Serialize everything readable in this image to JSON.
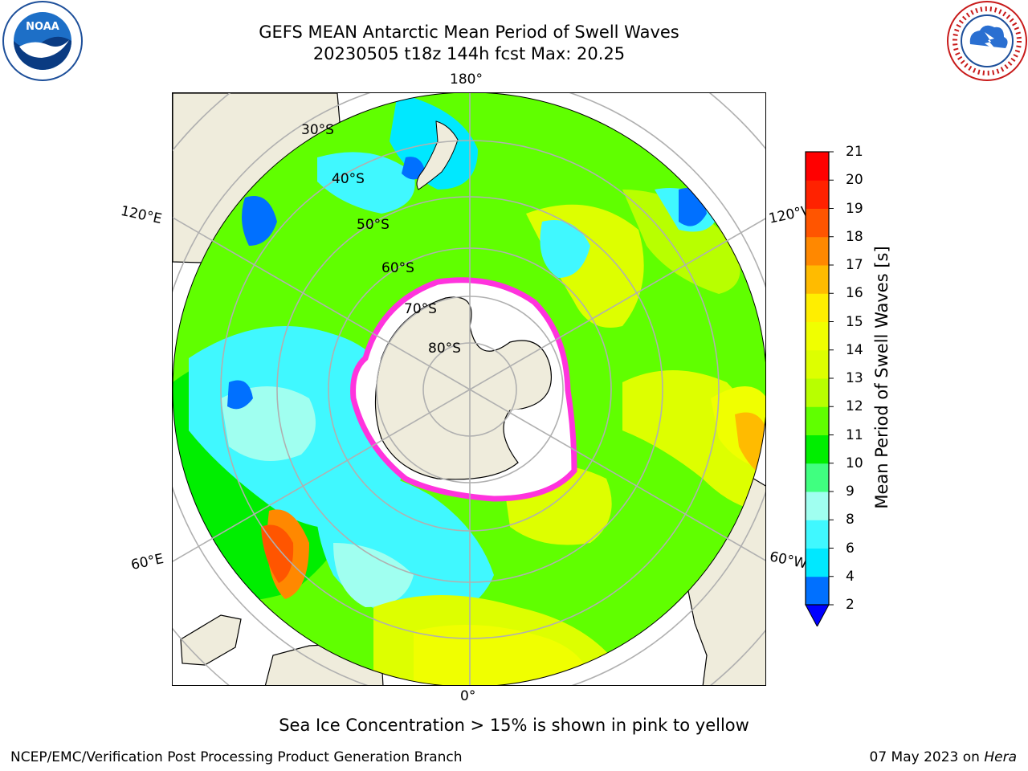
{
  "title": {
    "line1": "GEFS MEAN Antarctic Mean Period of Swell Waves",
    "line2": "20230505 t18z 144h fcst   Max: 20.25"
  },
  "logos": {
    "left": "noaa-logo",
    "right": "national-weather-service-logo"
  },
  "map": {
    "projection": "south-polar-stereographic",
    "longitude_labels": {
      "top": "180°",
      "bottom": "0°",
      "upper_left": "120°E",
      "upper_right": "120°W",
      "lower_left": "60°E",
      "lower_right": "60°W"
    },
    "latitude_labels": [
      "30°S",
      "40°S",
      "50°S",
      "60°S",
      "70°S",
      "80°S"
    ],
    "colors": {
      "land": "#efecdc",
      "grid": "#b0b0b0",
      "ice_edge": "#ff33dd",
      "ice_fill": "#ffffff"
    }
  },
  "colorbar": {
    "label": "Mean Period of Swell Waves [s]",
    "ticks": [
      "2",
      "4",
      "6",
      "8",
      "9",
      "10",
      "11",
      "12",
      "13",
      "14",
      "15",
      "16",
      "17",
      "18",
      "19",
      "20",
      "21"
    ],
    "colors": [
      "#0070ff",
      "#00e8ff",
      "#40f8ff",
      "#a0fff0",
      "#40ff80",
      "#00ee00",
      "#60ff00",
      "#b8ff00",
      "#ddff00",
      "#f0ff00",
      "#ffee00",
      "#ffbb00",
      "#ff8800",
      "#ff5500",
      "#ff2200",
      "#ff0000"
    ],
    "under_color": "#0000ff"
  },
  "notes": {
    "ice": "Sea Ice Concentration > 15% is shown in pink to yellow"
  },
  "footer": {
    "left": "NCEP/EMC/Verification Post Processing Product Generation Branch",
    "date": "07 May 2023 on",
    "machine": "Hera"
  }
}
